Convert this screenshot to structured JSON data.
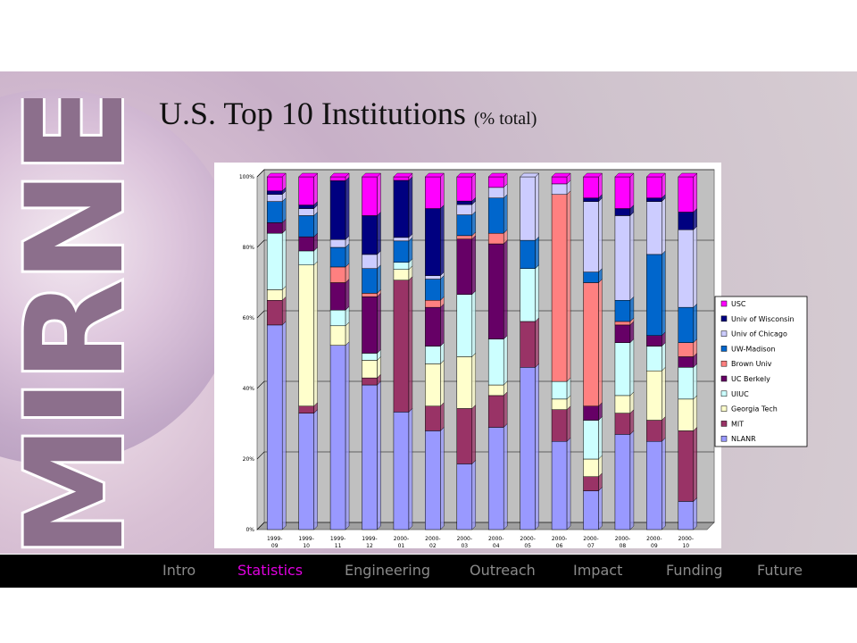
{
  "slide": {
    "logo_text": "MIRNET",
    "title": "U.S. Top 10 Institutions",
    "title_suffix": "(% total)"
  },
  "nav": {
    "items": [
      {
        "label": "Intro",
        "active": false
      },
      {
        "label": "Statistics",
        "active": true
      },
      {
        "label": "Engineering",
        "active": false
      },
      {
        "label": "Outreach",
        "active": false
      },
      {
        "label": "Impact",
        "active": false
      },
      {
        "label": "Funding",
        "active": false
      },
      {
        "label": "Future",
        "active": false
      }
    ],
    "active_color": "#e000e0",
    "inactive_color": "#8a8a8a"
  },
  "chart_data": {
    "type": "bar",
    "stacked": true,
    "percent": true,
    "title": "",
    "xlabel": "",
    "ylabel": "",
    "ylim": [
      0,
      100
    ],
    "y_ticks": [
      "0%",
      "20%",
      "40%",
      "60%",
      "80%",
      "100%"
    ],
    "categories": [
      [
        "1999-",
        "09"
      ],
      [
        "1999-",
        "10"
      ],
      [
        "1999-",
        "11"
      ],
      [
        "1999-",
        "12"
      ],
      [
        "2000-",
        "01"
      ],
      [
        "2000-",
        "02"
      ],
      [
        "2000-",
        "03"
      ],
      [
        "2000-",
        "04"
      ],
      [
        "2000-",
        "05"
      ],
      [
        "2000-",
        "06"
      ],
      [
        "2000-",
        "07"
      ],
      [
        "2000-",
        "08"
      ],
      [
        "2000-",
        "09"
      ],
      [
        "2000-",
        "10"
      ]
    ],
    "legend_position": "right",
    "grid": true,
    "series": [
      {
        "name": "NLANR",
        "color": "#9999ff",
        "values": [
          58,
          33,
          47,
          41,
          33,
          28,
          19,
          29,
          46,
          25,
          11,
          27,
          25,
          8
        ]
      },
      {
        "name": "MIT",
        "color": "#993366",
        "values": [
          7,
          2,
          0,
          2,
          37,
          7,
          16,
          9,
          13,
          9,
          4,
          6,
          6,
          20
        ]
      },
      {
        "name": "Georgia Tech",
        "color": "#ffffcc",
        "values": [
          3,
          40,
          5,
          5,
          3,
          12,
          15,
          3,
          0,
          3,
          5,
          5,
          14,
          9
        ]
      },
      {
        "name": "UIUC",
        "color": "#ccffff",
        "values": [
          16,
          4,
          4,
          2,
          2,
          5,
          18,
          13,
          15,
          5,
          11,
          15,
          7,
          9
        ]
      },
      {
        "name": "UC Berkely",
        "color": "#660066",
        "values": [
          3,
          4,
          7,
          16,
          0,
          11,
          16,
          27,
          0,
          0,
          4,
          5,
          3,
          3
        ]
      },
      {
        "name": "Brown Univ",
        "color": "#ff8080",
        "values": [
          0,
          0,
          4,
          1,
          0,
          2,
          1,
          3,
          0,
          53,
          35,
          1,
          0,
          4
        ]
      },
      {
        "name": "UW-Madison",
        "color": "#0066cc",
        "values": [
          6,
          6,
          5,
          7,
          6,
          6,
          6,
          10,
          8,
          0,
          3,
          6,
          23,
          10
        ]
      },
      {
        "name": "Univ of Chicago",
        "color": "#ccccff",
        "values": [
          2,
          2,
          2,
          4,
          1,
          1,
          3,
          3,
          18,
          3,
          20,
          24,
          15,
          22
        ]
      },
      {
        "name": "Univ of Wisconsin",
        "color": "#000080",
        "values": [
          1,
          1,
          15,
          11,
          16,
          19,
          1,
          0,
          0,
          0,
          1,
          2,
          1,
          5
        ]
      },
      {
        "name": "USC",
        "color": "#ff00ff",
        "values": [
          4,
          8,
          1,
          11,
          1,
          9,
          7,
          3,
          0,
          2,
          6,
          9,
          6,
          10
        ]
      }
    ]
  }
}
